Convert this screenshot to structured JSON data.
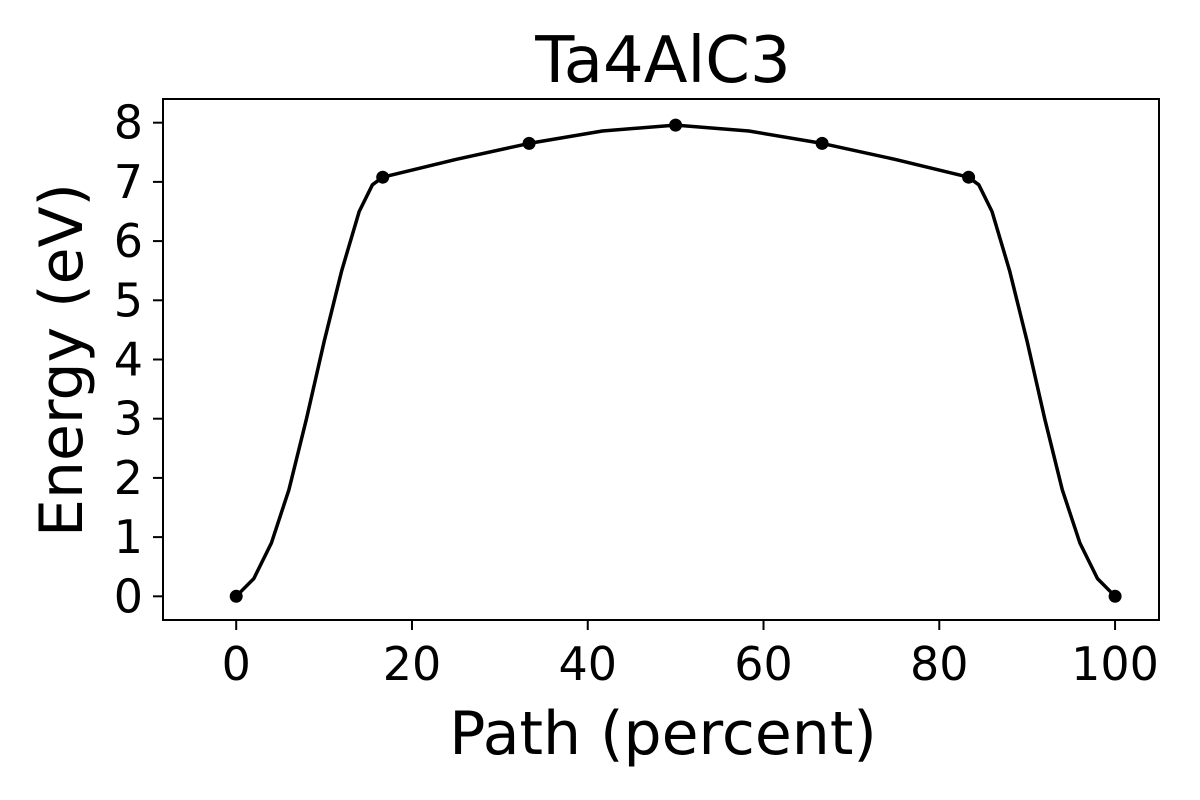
{
  "chart_data": {
    "type": "line",
    "title": "Ta4AlC3",
    "xlabel": "Path (percent)",
    "ylabel": "Energy (eV)",
    "xlim": [
      -8.33,
      105
    ],
    "ylim": [
      -0.4,
      8.4
    ],
    "xticks": [
      0,
      20,
      40,
      60,
      80,
      100
    ],
    "yticks": [
      0,
      1,
      2,
      3,
      4,
      5,
      6,
      7,
      8
    ],
    "grid": false,
    "legend": "none",
    "color": "#000000",
    "points": [
      {
        "x": 0,
        "y": 0
      },
      {
        "x": 16.67,
        "y": 7.08
      },
      {
        "x": 33.33,
        "y": 7.65
      },
      {
        "x": 50,
        "y": 7.96
      },
      {
        "x": 66.67,
        "y": 7.65
      },
      {
        "x": 83.33,
        "y": 7.08
      },
      {
        "x": 100,
        "y": 0
      }
    ],
    "curve": [
      [
        0,
        0
      ],
      [
        2,
        0.3
      ],
      [
        4,
        0.9
      ],
      [
        6,
        1.8
      ],
      [
        8,
        3.0
      ],
      [
        10,
        4.3
      ],
      [
        12,
        5.5
      ],
      [
        14,
        6.5
      ],
      [
        15.5,
        6.95
      ],
      [
        16.67,
        7.08
      ],
      [
        25,
        7.38
      ],
      [
        33.33,
        7.65
      ],
      [
        41.67,
        7.86
      ],
      [
        50,
        7.96
      ],
      [
        58.33,
        7.86
      ],
      [
        66.67,
        7.65
      ],
      [
        75,
        7.38
      ],
      [
        83.33,
        7.08
      ],
      [
        84.5,
        6.95
      ],
      [
        86,
        6.5
      ],
      [
        88,
        5.5
      ],
      [
        90,
        4.3
      ],
      [
        92,
        3.0
      ],
      [
        94,
        1.8
      ],
      [
        96,
        0.9
      ],
      [
        98,
        0.3
      ],
      [
        100,
        0
      ]
    ]
  }
}
